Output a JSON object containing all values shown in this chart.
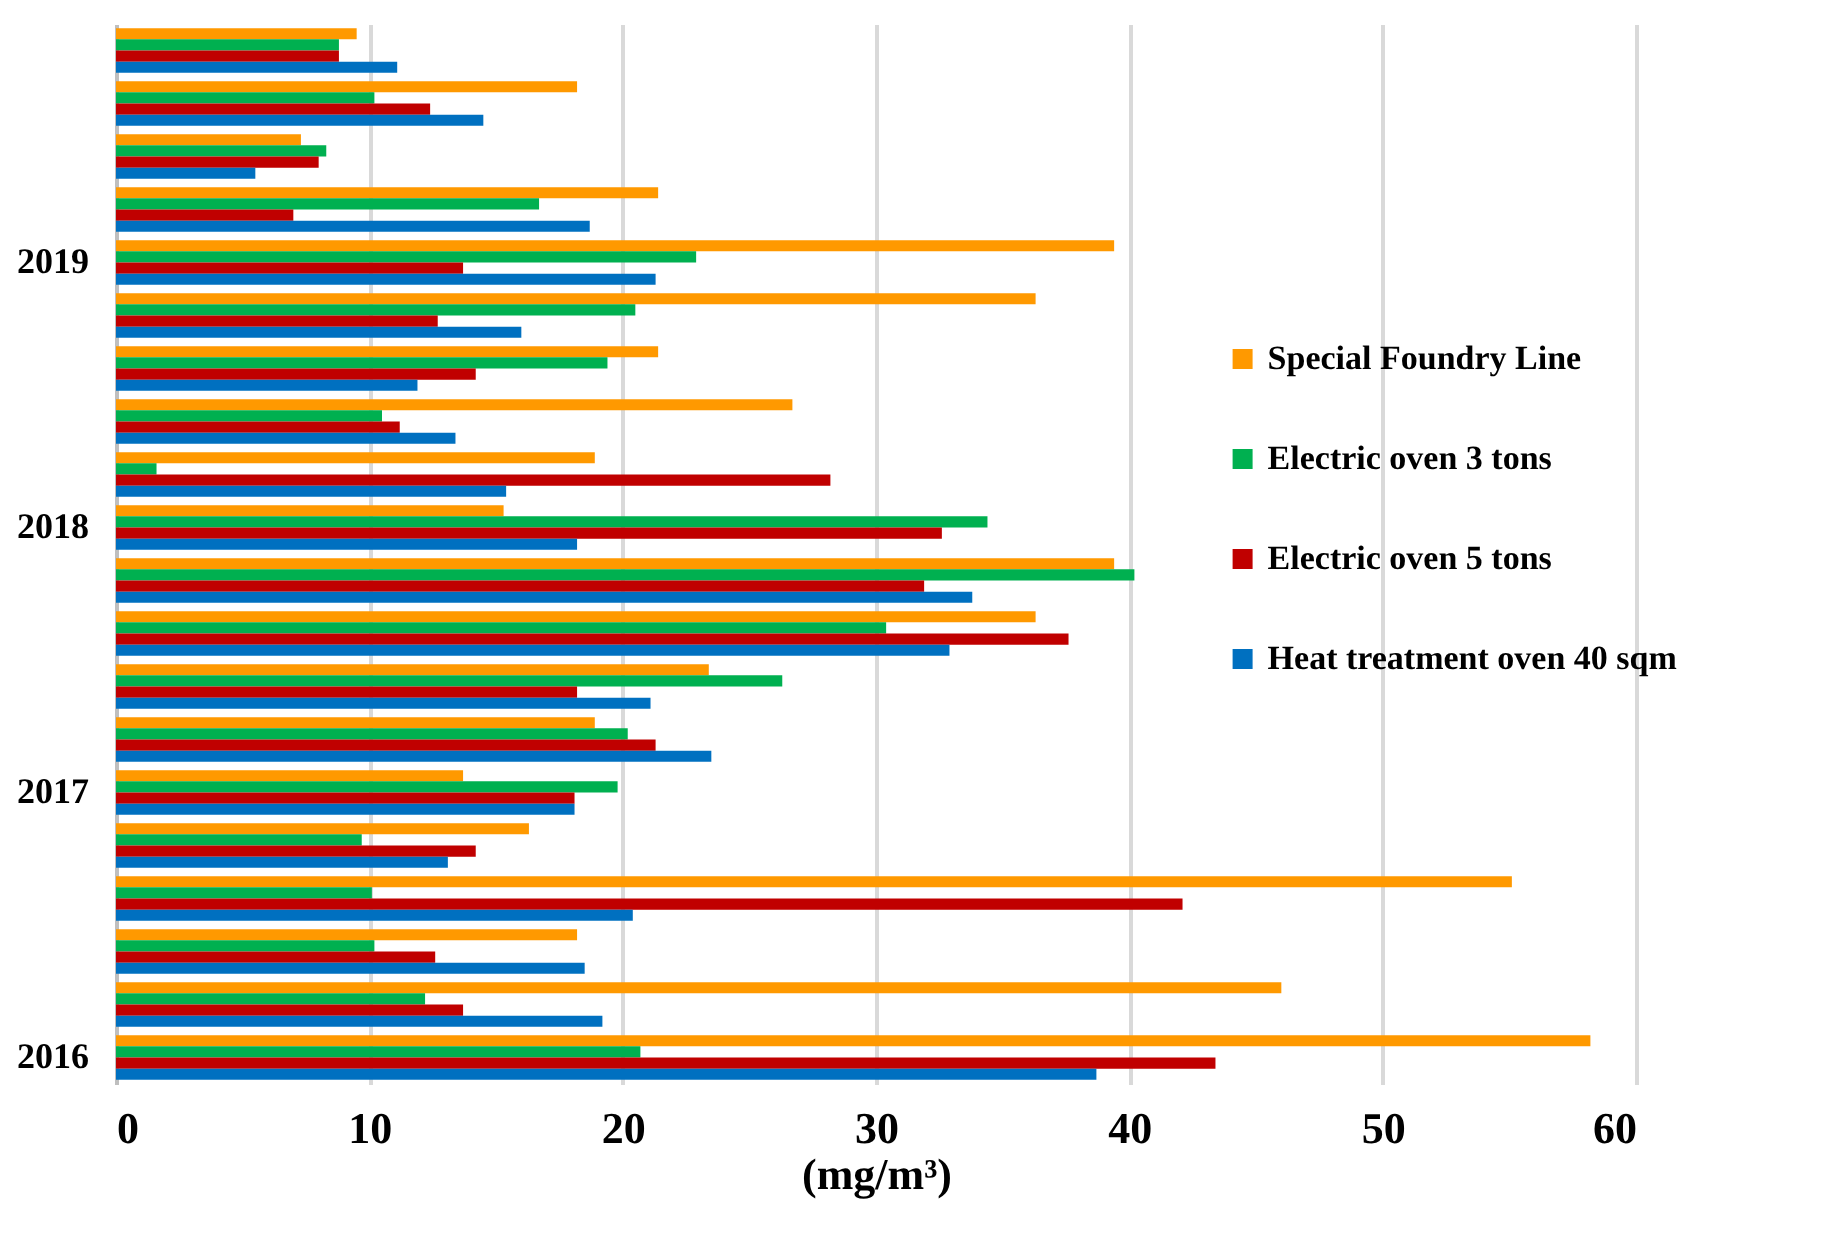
{
  "chart_data": {
    "type": "bar",
    "orientation": "horizontal",
    "xlabel": "(mg/m³)",
    "categories": [
      null,
      null,
      null,
      null,
      "2019",
      null,
      null,
      null,
      null,
      "2018",
      null,
      null,
      null,
      null,
      "2017",
      null,
      null,
      null,
      null,
      "2016"
    ],
    "series": [
      {
        "name": "Special Foundry Line",
        "color": "#ff9900",
        "values": [
          9.5,
          18.2,
          7.3,
          21.4,
          39.4,
          36.3,
          21.4,
          26.7,
          18.9,
          15.3,
          39.4,
          36.3,
          23.4,
          18.9,
          13.7,
          16.3,
          55.1,
          18.2,
          46.0,
          58.2
        ]
      },
      {
        "name": "Electric oven 3 tons",
        "color": "#00b050",
        "values": [
          8.8,
          10.2,
          8.3,
          16.7,
          22.9,
          20.5,
          19.4,
          10.5,
          1.6,
          34.4,
          40.2,
          30.4,
          26.3,
          20.2,
          19.8,
          9.7,
          10.1,
          10.2,
          12.2,
          20.7
        ]
      },
      {
        "name": "Electric oven 5 tons",
        "color": "#c00000",
        "values": [
          8.8,
          12.4,
          8.0,
          7.0,
          13.7,
          12.7,
          14.2,
          11.2,
          28.2,
          32.6,
          31.9,
          37.6,
          18.2,
          21.3,
          18.1,
          14.2,
          42.1,
          12.6,
          13.7,
          43.4
        ]
      },
      {
        "name": "Heat treatment oven 40 sqm",
        "color": "#0070c0",
        "values": [
          11.1,
          14.5,
          5.5,
          18.7,
          21.3,
          16.0,
          11.9,
          13.4,
          15.4,
          18.2,
          33.8,
          32.9,
          21.1,
          23.5,
          18.1,
          13.1,
          20.4,
          18.5,
          19.2,
          38.7
        ]
      }
    ],
    "xlim": [
      0,
      60
    ],
    "xticks": [
      0,
      10,
      20,
      30,
      40,
      50,
      60
    ],
    "grid": "x",
    "legend": "right"
  }
}
